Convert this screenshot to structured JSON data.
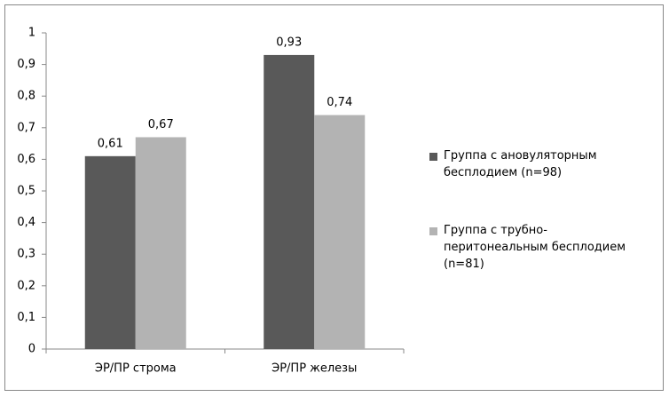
{
  "chart_data": {
    "type": "bar",
    "categories": [
      "ЭР/ПР строма",
      "ЭР/ПР железы"
    ],
    "series": [
      {
        "name": "Группа с ановуляторным бесплодием (n=98)",
        "color": "#595959",
        "values": [
          0.61,
          0.93
        ],
        "value_labels": [
          "0,61",
          "0,93"
        ]
      },
      {
        "name": "Группа с трубно-перитонеальным бесплодием (n=81)",
        "color": "#b3b3b3",
        "values": [
          0.67,
          0.74
        ],
        "value_labels": [
          "0,67",
          "0,74"
        ]
      }
    ],
    "ylim": [
      0,
      1
    ],
    "yticks": [
      0,
      {
        "value": 0.1,
        "label": "0,1"
      },
      {
        "value": 0.2,
        "label": "0,2"
      },
      {
        "value": 0.3,
        "label": "0,3"
      },
      {
        "value": 0.4,
        "label": "0,4"
      },
      {
        "value": 0.5,
        "label": "0,5"
      },
      {
        "value": 0.6,
        "label": "0,6"
      },
      {
        "value": 0.7,
        "label": "0,7"
      },
      {
        "value": 0.8,
        "label": "0,8"
      },
      {
        "value": 0.9,
        "label": "0,9"
      },
      1
    ],
    "grid": false,
    "legend": "right"
  }
}
